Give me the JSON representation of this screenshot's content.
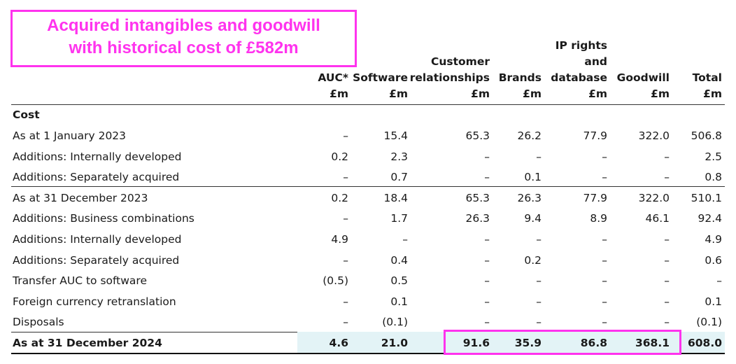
{
  "callout": {
    "line1": "Acquired intangibles and goodwill",
    "line2": "with historical cost of £582m",
    "color": "#ff33ee"
  },
  "columns": [
    {
      "lines": [
        "AUC*",
        "£m"
      ]
    },
    {
      "lines": [
        "Software",
        "£m"
      ]
    },
    {
      "lines": [
        "Customer",
        "relationships",
        "£m"
      ]
    },
    {
      "lines": [
        "Brands",
        "£m"
      ]
    },
    {
      "lines": [
        "IP rights",
        "and",
        "database",
        "£m"
      ]
    },
    {
      "lines": [
        "Goodwill",
        "£m"
      ]
    },
    {
      "lines": [
        "Total",
        "£m"
      ]
    }
  ],
  "section": "Cost",
  "rows": [
    {
      "label": "As at 1 January 2023",
      "values": [
        "–",
        "15.4",
        "65.3",
        "26.2",
        "77.9",
        "322.0",
        "506.8"
      ]
    },
    {
      "label": "Additions: Internally developed",
      "values": [
        "0.2",
        "2.3",
        "–",
        "–",
        "–",
        "–",
        "2.5"
      ]
    },
    {
      "label": "Additions: Separately acquired",
      "values": [
        "–",
        "0.7",
        "–",
        "0.1",
        "–",
        "–",
        "0.8"
      ]
    },
    {
      "label": "As at 31 December 2023",
      "values": [
        "0.2",
        "18.4",
        "65.3",
        "26.3",
        "77.9",
        "322.0",
        "510.1"
      ]
    },
    {
      "label": "Additions: Business combinations",
      "values": [
        "–",
        "1.7",
        "26.3",
        "9.4",
        "8.9",
        "46.1",
        "92.4"
      ]
    },
    {
      "label": "Additions: Internally developed",
      "values": [
        "4.9",
        "–",
        "–",
        "–",
        "–",
        "–",
        "4.9"
      ]
    },
    {
      "label": "Additions: Separately acquired",
      "values": [
        "–",
        "0.4",
        "–",
        "0.2",
        "–",
        "–",
        "0.6"
      ]
    },
    {
      "label": "Transfer AUC to software",
      "values": [
        "(0.5)",
        "0.5",
        "–",
        "–",
        "–",
        "–",
        "–"
      ]
    },
    {
      "label": "Foreign currency retranslation",
      "values": [
        "–",
        "0.1",
        "–",
        "–",
        "–",
        "–",
        "0.1"
      ]
    },
    {
      "label": "Disposals",
      "values": [
        "–",
        "(0.1)",
        "–",
        "–",
        "–",
        "–",
        "(0.1)"
      ]
    }
  ],
  "total_row": {
    "label": "As at 31 December 2024",
    "values": [
      "4.6",
      "21.0",
      "91.6",
      "35.9",
      "86.8",
      "368.1",
      "608.0"
    ],
    "highlight_color": "#e3f3f6"
  }
}
